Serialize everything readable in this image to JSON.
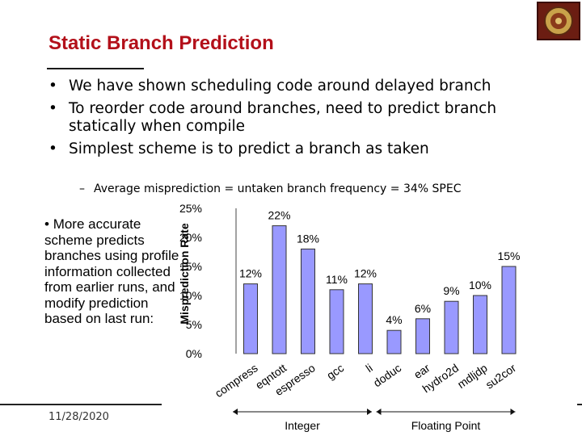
{
  "slide": {
    "title": "Static Branch Prediction",
    "date": "11/28/2020",
    "logo_icon": "university-seal-icon"
  },
  "bullets": [
    "We have shown scheduling code around delayed branch",
    "To reorder code around branches, need to predict branch statically when compile",
    "Simplest scheme is to predict a branch as taken"
  ],
  "sub_bullet": "Average misprediction = untaken branch frequency = 34% SPEC",
  "side_text": "More accurate scheme predicts branches using profile information collected from earlier runs, and modify prediction based on last run:",
  "bullet_symbol": "•",
  "dash_symbol": "–",
  "chart_data": {
    "type": "bar",
    "categories": [
      "compress",
      "eqntott",
      "espresso",
      "gcc",
      "li",
      "doduc",
      "ear",
      "hydro2d",
      "mdljdp",
      "su2cor"
    ],
    "values": [
      12,
      22,
      18,
      11,
      12,
      4,
      6,
      9,
      10,
      15
    ],
    "value_labels": [
      "12%",
      "22%",
      "18%",
      "11%",
      "12%",
      "4%",
      "6%",
      "9%",
      "10%",
      "15%"
    ],
    "ylabel": "Misprediction Rate",
    "yticks": [
      "0%",
      "5%",
      "10%",
      "15%",
      "20%",
      "25%"
    ],
    "ylim": [
      0,
      25
    ],
    "groups": [
      {
        "label": "Integer",
        "from": 0,
        "to": 4
      },
      {
        "label": "Floating Point",
        "from": 5,
        "to": 9
      }
    ],
    "bar_color": "#9999ff",
    "bar_stroke": "#333333",
    "grid": false
  }
}
